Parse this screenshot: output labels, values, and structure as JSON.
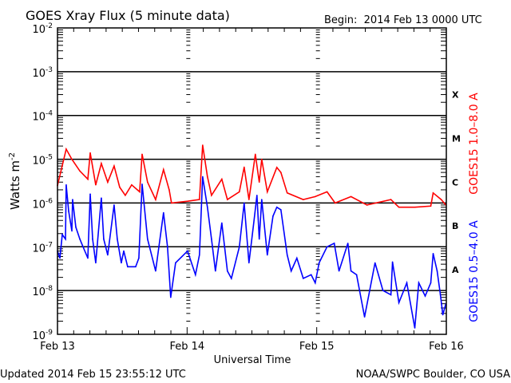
{
  "chart_data": {
    "type": "line",
    "title": "GOES Xray Flux (5 minute data)",
    "begin_label": "Begin:  2014 Feb 13 0000 UTC",
    "xlabel": "Universal Time",
    "ylabel": "Watts m",
    "ylabel_superscript": "-2",
    "y_scale": "log",
    "ylim": [
      1e-09,
      0.01
    ],
    "xlim": [
      "2014-02-13T00:00",
      "2014-02-16T00:00"
    ],
    "x_ticks": [
      {
        "t": "2014-02-13T00:00",
        "label": "Feb 13"
      },
      {
        "t": "2014-02-14T00:00",
        "label": "Feb 14"
      },
      {
        "t": "2014-02-15T00:00",
        "label": "Feb 15"
      },
      {
        "t": "2014-02-16T00:00",
        "label": "Feb 16"
      }
    ],
    "y_ticks": [
      {
        "v": 0.01,
        "base": "10",
        "exp": "-2"
      },
      {
        "v": 0.001,
        "base": "10",
        "exp": "-3"
      },
      {
        "v": 0.0001,
        "base": "10",
        "exp": "-4"
      },
      {
        "v": 1e-05,
        "base": "10",
        "exp": "-5"
      },
      {
        "v": 1e-06,
        "base": "10",
        "exp": "-6"
      },
      {
        "v": 1e-07,
        "base": "10",
        "exp": "-7"
      },
      {
        "v": 1e-08,
        "base": "10",
        "exp": "-8"
      },
      {
        "v": 1e-09,
        "base": "10",
        "exp": "-9"
      }
    ],
    "gridlines": [
      0.001,
      0.0001,
      1e-05,
      1e-06,
      1e-07,
      1e-08
    ],
    "flare_classes": [
      {
        "label": "X",
        "v": 0.0003
      },
      {
        "label": "M",
        "v": 3e-05
      },
      {
        "label": "C",
        "v": 3e-06
      },
      {
        "label": "B",
        "v": 3e-07
      },
      {
        "label": "A",
        "v": 3e-08
      }
    ],
    "series": [
      {
        "name": "GOES15 1.0–8.0 A",
        "color": "#ff0000",
        "points": [
          [
            "2014-02-13T00:00",
            2.5e-06
          ],
          [
            "2014-02-13T01:37",
            1.7e-05
          ],
          [
            "2014-02-13T02:40",
            1e-05
          ],
          [
            "2014-02-13T04:08",
            5.4e-06
          ],
          [
            "2014-02-13T05:37",
            3.5e-06
          ],
          [
            "2014-02-13T06:04",
            1.4e-05
          ],
          [
            "2014-02-13T07:05",
            2.6e-06
          ],
          [
            "2014-02-13T08:07",
            8e-06
          ],
          [
            "2014-02-13T09:18",
            3e-06
          ],
          [
            "2014-02-13T10:29",
            7e-06
          ],
          [
            "2014-02-13T11:31",
            2.3e-06
          ],
          [
            "2014-02-13T12:33",
            1.5e-06
          ],
          [
            "2014-02-13T13:44",
            2.6e-06
          ],
          [
            "2014-02-13T15:13",
            1.8e-06
          ],
          [
            "2014-02-13T15:40",
            1.3e-05
          ],
          [
            "2014-02-13T16:41",
            3e-06
          ],
          [
            "2014-02-13T18:10",
            1.2e-06
          ],
          [
            "2014-02-13T19:38",
            5.8e-06
          ],
          [
            "2014-02-13T20:41",
            2e-06
          ],
          [
            "2014-02-13T21:07",
            1e-06
          ],
          [
            "2014-02-14T00:05",
            1.1e-06
          ],
          [
            "2014-02-14T02:17",
            1.2e-06
          ],
          [
            "2014-02-14T02:53",
            2.1e-05
          ],
          [
            "2014-02-14T03:46",
            4e-06
          ],
          [
            "2014-02-14T04:31",
            1.5e-06
          ],
          [
            "2014-02-14T06:26",
            3.5e-06
          ],
          [
            "2014-02-14T07:28",
            1.2e-06
          ],
          [
            "2014-02-14T09:41",
            1.8e-06
          ],
          [
            "2014-02-14T10:34",
            6.6e-06
          ],
          [
            "2014-02-14T11:27",
            1.2e-06
          ],
          [
            "2014-02-14T12:38",
            1.3e-05
          ],
          [
            "2014-02-14T13:22",
            3e-06
          ],
          [
            "2014-02-14T13:49",
            1e-05
          ],
          [
            "2014-02-14T14:51",
            1.8e-06
          ],
          [
            "2014-02-14T16:37",
            6.5e-06
          ],
          [
            "2014-02-14T17:22",
            5e-06
          ],
          [
            "2014-02-14T18:32",
            1.7e-06
          ],
          [
            "2014-02-14T21:30",
            1.2e-06
          ],
          [
            "2014-02-14T23:43",
            1.4e-06
          ],
          [
            "2014-02-15T01:55",
            1.8e-06
          ],
          [
            "2014-02-15T03:24",
            1e-06
          ],
          [
            "2014-02-15T06:21",
            1.4e-06
          ],
          [
            "2014-02-15T09:18",
            9e-07
          ],
          [
            "2014-02-15T13:44",
            1.2e-06
          ],
          [
            "2014-02-15T15:13",
            8e-07
          ],
          [
            "2014-02-15T18:10",
            8e-07
          ],
          [
            "2014-02-15T21:07",
            8.5e-07
          ],
          [
            "2014-02-15T21:34",
            1.7e-06
          ],
          [
            "2014-02-15T23:03",
            1.2e-06
          ],
          [
            "2014-02-15T23:55",
            9e-07
          ]
        ]
      },
      {
        "name": "GOES15 0.5–4.0 A",
        "color": "#0000ff",
        "points": [
          [
            "2014-02-13T00:00",
            8e-08
          ],
          [
            "2014-02-13T00:27",
            5.5e-08
          ],
          [
            "2014-02-13T00:53",
            1.9e-07
          ],
          [
            "2014-02-13T01:29",
            1.5e-07
          ],
          [
            "2014-02-13T01:37",
            2.6e-06
          ],
          [
            "2014-02-13T02:04",
            6.5e-07
          ],
          [
            "2014-02-13T02:40",
            2.3e-07
          ],
          [
            "2014-02-13T02:48",
            1.2e-06
          ],
          [
            "2014-02-13T03:24",
            2.8e-07
          ],
          [
            "2014-02-13T04:08",
            1.5e-07
          ],
          [
            "2014-02-13T04:44",
            1e-07
          ],
          [
            "2014-02-13T05:37",
            5.5e-08
          ],
          [
            "2014-02-13T06:04",
            1.6e-06
          ],
          [
            "2014-02-13T06:30",
            1.5e-07
          ],
          [
            "2014-02-13T07:05",
            4.3e-08
          ],
          [
            "2014-02-13T08:07",
            1.3e-06
          ],
          [
            "2014-02-13T08:34",
            1.5e-07
          ],
          [
            "2014-02-13T09:18",
            6.5e-08
          ],
          [
            "2014-02-13T10:29",
            9e-07
          ],
          [
            "2014-02-13T11:04",
            1.5e-07
          ],
          [
            "2014-02-13T11:49",
            4.3e-08
          ],
          [
            "2014-02-13T12:16",
            8e-08
          ],
          [
            "2014-02-13T13:00",
            3.5e-08
          ],
          [
            "2014-02-13T14:28",
            3.5e-08
          ],
          [
            "2014-02-13T15:04",
            5.5e-08
          ],
          [
            "2014-02-13T15:40",
            2.7e-06
          ],
          [
            "2014-02-13T16:41",
            1.5e-07
          ],
          [
            "2014-02-13T18:10",
            2.8e-08
          ],
          [
            "2014-02-13T19:38",
            6e-07
          ],
          [
            "2014-02-13T20:22",
            1e-07
          ],
          [
            "2014-02-13T20:58",
            7e-09
          ],
          [
            "2014-02-13T21:52",
            4.3e-08
          ],
          [
            "2014-02-14T00:05",
            8e-08
          ],
          [
            "2014-02-14T01:33",
            2.3e-08
          ],
          [
            "2014-02-14T02:17",
            6.5e-08
          ],
          [
            "2014-02-14T02:53",
            4e-06
          ],
          [
            "2014-02-14T03:46",
            8e-07
          ],
          [
            "2014-02-14T04:31",
            1.5e-07
          ],
          [
            "2014-02-14T05:15",
            2.8e-08
          ],
          [
            "2014-02-14T06:26",
            3.5e-07
          ],
          [
            "2014-02-14T07:28",
            2.8e-08
          ],
          [
            "2014-02-14T08:12",
            1.9e-08
          ],
          [
            "2014-02-14T09:41",
            1e-07
          ],
          [
            "2014-02-14T10:34",
            1e-06
          ],
          [
            "2014-02-14T11:27",
            4.3e-08
          ],
          [
            "2014-02-14T12:20",
            3.5e-07
          ],
          [
            "2014-02-14T12:56",
            1.5e-06
          ],
          [
            "2014-02-14T13:22",
            1.5e-07
          ],
          [
            "2014-02-14T13:49",
            1.2e-06
          ],
          [
            "2014-02-14T14:51",
            6.5e-08
          ],
          [
            "2014-02-14T15:54",
            5e-07
          ],
          [
            "2014-02-14T16:37",
            8e-07
          ],
          [
            "2014-02-14T17:22",
            7e-07
          ],
          [
            "2014-02-14T18:32",
            6.5e-08
          ],
          [
            "2014-02-14T19:16",
            2.8e-08
          ],
          [
            "2014-02-14T20:19",
            5.5e-08
          ],
          [
            "2014-02-14T21:30",
            1.9e-08
          ],
          [
            "2014-02-14T22:58",
            2.3e-08
          ],
          [
            "2014-02-14T23:43",
            1.5e-08
          ],
          [
            "2014-02-15T00:27",
            4.3e-08
          ],
          [
            "2014-02-15T01:55",
            1e-07
          ],
          [
            "2014-02-15T03:15",
            1.2e-07
          ],
          [
            "2014-02-15T04:08",
            2.8e-08
          ],
          [
            "2014-02-15T05:46",
            1.2e-07
          ],
          [
            "2014-02-15T06:21",
            2.8e-08
          ],
          [
            "2014-02-15T07:23",
            2.3e-08
          ],
          [
            "2014-02-15T08:52",
            2.5e-09
          ],
          [
            "2014-02-15T10:48",
            4.3e-08
          ],
          [
            "2014-02-15T12:16",
            1e-08
          ],
          [
            "2014-02-15T13:44",
            8e-09
          ],
          [
            "2014-02-15T14:02",
            4.5e-08
          ],
          [
            "2014-02-15T15:13",
            5.3e-09
          ],
          [
            "2014-02-15T16:41",
            1.5e-08
          ],
          [
            "2014-02-15T18:10",
            1.4e-09
          ],
          [
            "2014-02-15T18:54",
            1.5e-08
          ],
          [
            "2014-02-15T20:05",
            7.5e-09
          ],
          [
            "2014-02-15T21:07",
            1.5e-08
          ],
          [
            "2014-02-15T21:34",
            7e-08
          ],
          [
            "2014-02-15T22:18",
            2.8e-08
          ],
          [
            "2014-02-15T22:54",
            8e-09
          ],
          [
            "2014-02-15T23:21",
            2.8e-09
          ],
          [
            "2014-02-15T23:55",
            5e-09
          ]
        ]
      }
    ],
    "footer_left": "Updated 2014 Feb 15 23:55:12 UTC",
    "footer_right": "NOAA/SWPC Boulder, CO USA"
  }
}
